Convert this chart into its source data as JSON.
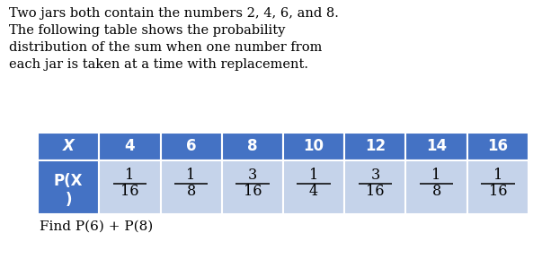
{
  "intro_text": "Two jars both contain the numbers 2, 4, 6, and 8.\nThe following table shows the probability\ndistribution of the sum when one number from\neach jar is taken at a time with replacement.",
  "footer_text": "Find P(6) + P(8)",
  "x_values": [
    "X",
    "4",
    "6",
    "8",
    "10",
    "12",
    "14",
    "16"
  ],
  "p_numerators": [
    "",
    "1",
    "1",
    "3",
    "1",
    "3",
    "1",
    "1"
  ],
  "p_denominators": [
    "",
    "16",
    "8",
    "16",
    "4",
    "16",
    "8",
    "16"
  ],
  "header_bg": "#4472C4",
  "header_text_color": "#FFFFFF",
  "row_bg": "#C5D3EA",
  "row_text_color": "#000000",
  "label_bg": "#4472C4",
  "label_text_color": "#FFFFFF",
  "intro_fontsize": 10.5,
  "footer_fontsize": 11,
  "table_header_fontsize": 12,
  "table_value_fontsize": 11.5,
  "label_fontsize": 12,
  "fig_width": 6.03,
  "fig_height": 3.08,
  "dpi": 100
}
